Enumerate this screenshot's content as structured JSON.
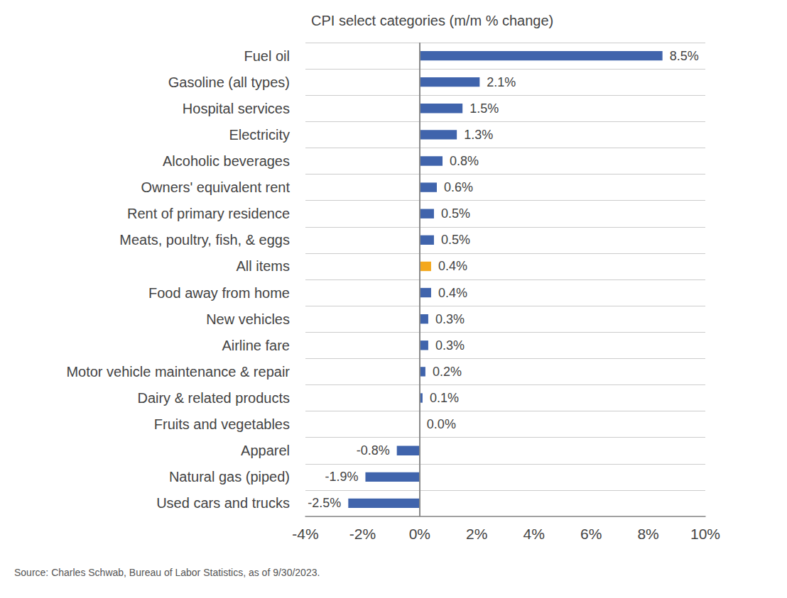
{
  "chart_data": {
    "type": "bar",
    "orientation": "horizontal",
    "title": "CPI select categories (m/m % change)",
    "annotations": [
      "Source: Charles Schwab, Bureau of Labor Statistics, as of 9/30/2023."
    ],
    "categories": [
      "Fuel oil",
      "Gasoline (all types)",
      "Hospital services",
      "Electricity",
      "Alcoholic beverages",
      "Owners' equivalent rent",
      "Rent of primary residence",
      "Meats, poultry, fish, & eggs",
      "All items",
      "Food away from home",
      "New vehicles",
      "Airline fare",
      "Motor vehicle maintenance & repair",
      "Dairy & related products",
      "Fruits and vegetables",
      "Apparel",
      "Natural gas (piped)",
      "Used cars and trucks"
    ],
    "values": [
      8.5,
      2.1,
      1.5,
      1.3,
      0.8,
      0.6,
      0.5,
      0.5,
      0.4,
      0.4,
      0.3,
      0.3,
      0.2,
      0.1,
      0.0,
      -0.8,
      -1.9,
      -2.5
    ],
    "value_labels": [
      "8.5%",
      "2.1%",
      "1.5%",
      "1.3%",
      "0.8%",
      "0.6%",
      "0.5%",
      "0.5%",
      "0.4%",
      "0.4%",
      "0.3%",
      "0.3%",
      "0.2%",
      "0.1%",
      "0.0%",
      "-0.8%",
      "-1.9%",
      "-2.5%"
    ],
    "colors": [
      "#4064ac",
      "#4064ac",
      "#4064ac",
      "#4064ac",
      "#4064ac",
      "#4064ac",
      "#4064ac",
      "#4064ac",
      "#f4a81d",
      "#4064ac",
      "#4064ac",
      "#4064ac",
      "#4064ac",
      "#4064ac",
      "#4064ac",
      "#4064ac",
      "#4064ac",
      "#4064ac"
    ],
    "xlim": [
      -4,
      10
    ],
    "xticks": [
      {
        "value": -4,
        "label": "-4%"
      },
      {
        "value": -2,
        "label": "-2%"
      },
      {
        "value": 0,
        "label": "0%"
      },
      {
        "value": 2,
        "label": "2%"
      },
      {
        "value": 4,
        "label": "4%"
      },
      {
        "value": 6,
        "label": "6%"
      },
      {
        "value": 8,
        "label": "8%"
      },
      {
        "value": 10,
        "label": "10%"
      }
    ],
    "grid": true,
    "data_labels": true
  }
}
